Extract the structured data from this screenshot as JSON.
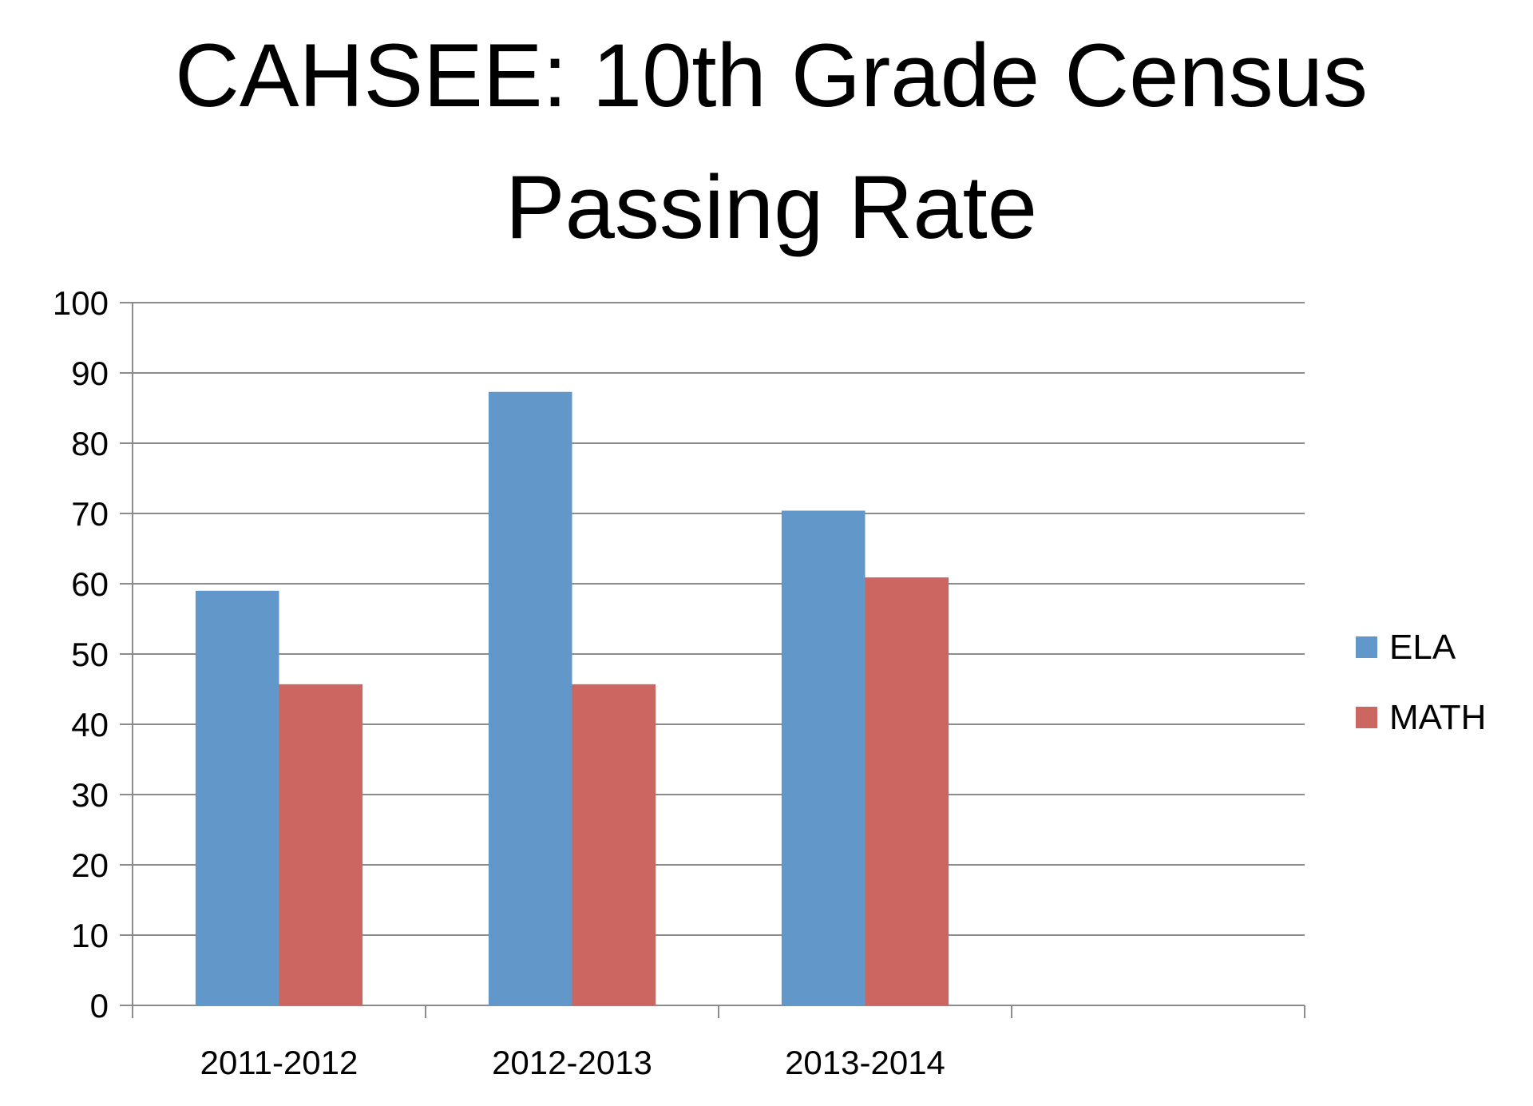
{
  "chart_data": {
    "type": "bar",
    "title_lines": [
      "CAHSEE: 10th Grade Census",
      "Passing Rate"
    ],
    "categories": [
      "2011-2012",
      "2012-2013",
      "2013-2014",
      ""
    ],
    "series": [
      {
        "name": "ELA",
        "color": "#6197C9",
        "values": [
          59.0,
          87.3,
          70.4,
          null
        ]
      },
      {
        "name": "MATH",
        "color": "#CC6660",
        "values": [
          45.7,
          45.7,
          60.9,
          null
        ]
      }
    ],
    "xlabel": "",
    "ylabel": "",
    "ylim": [
      0,
      100
    ],
    "yticks": [
      "0",
      "10",
      "20",
      "30",
      "40",
      "50",
      "60",
      "70",
      "80",
      "90",
      "100"
    ],
    "grid": true,
    "legend_position": "right"
  }
}
